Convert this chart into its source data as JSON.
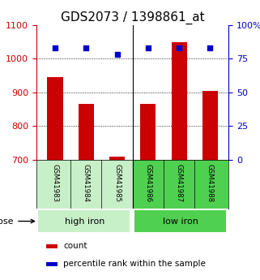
{
  "title": "GDS2073 / 1398861_at",
  "samples": [
    "GSM41983",
    "GSM41984",
    "GSM41985",
    "GSM41986",
    "GSM41987",
    "GSM41988"
  ],
  "counts": [
    945,
    865,
    710,
    865,
    1050,
    905
  ],
  "percentiles": [
    83,
    83,
    78,
    83,
    83,
    83
  ],
  "ylim_left": [
    700,
    1100
  ],
  "ylim_right": [
    0,
    100
  ],
  "yticks_left": [
    700,
    800,
    900,
    1000,
    1100
  ],
  "yticks_right": [
    0,
    25,
    50,
    75,
    100
  ],
  "ytick_labels_right": [
    "0",
    "25",
    "50",
    "75",
    "100%"
  ],
  "groups": [
    {
      "label": "high iron",
      "indices": [
        0,
        1,
        2
      ],
      "color": "#c8f0c8"
    },
    {
      "label": "low iron",
      "indices": [
        3,
        4,
        5
      ],
      "color": "#50d050"
    }
  ],
  "bar_color": "#cc0000",
  "dot_color": "#0000cc",
  "left_axis_color": "#cc0000",
  "right_axis_color": "#0000cc",
  "bar_width": 0.5,
  "background_color": "#ffffff",
  "plot_bg_color": "#ffffff",
  "grid_color": "#000000",
  "title_fontsize": 11,
  "tick_fontsize": 8,
  "label_fontsize": 8,
  "dose_label": "dose",
  "legend_count": "count",
  "legend_percentile": "percentile rank within the sample"
}
